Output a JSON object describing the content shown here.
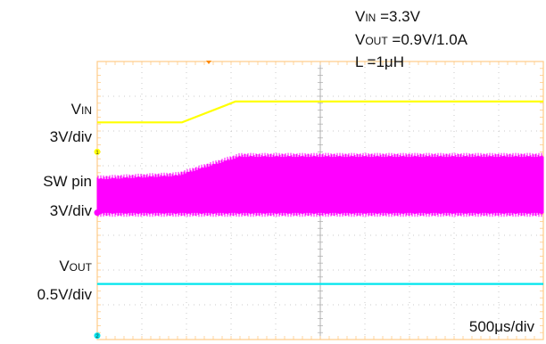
{
  "chart_data": {
    "type": "line",
    "conditions": {
      "vin": {
        "prefix": "V",
        "sub": "IN",
        "value": " =3.3V"
      },
      "vout": {
        "prefix": "V",
        "sub": "OUT",
        "value": " =0.9V/1.0A"
      },
      "inductor": {
        "text": "L =1μH"
      }
    },
    "timebase": "500μs/div",
    "x_divisions": 10,
    "y_divisions": 8,
    "time_unit": "div",
    "xlim": [
      0,
      10
    ],
    "ylim": [
      -4,
      4
    ],
    "channels": [
      {
        "name_prefix": "V",
        "name_sub": "IN",
        "scale": "3V/div",
        "color": "#ffff00",
        "marker": "1",
        "x": [
          0,
          1.9,
          3.1,
          10
        ],
        "y": [
          2.25,
          2.25,
          2.85,
          2.85
        ]
      },
      {
        "name_main": "SW  pin",
        "scale": "3V/div",
        "color": "#ff00ff",
        "marker": "",
        "x": [
          0,
          1.8,
          3.2,
          10
        ],
        "high": [
          0.6,
          0.7,
          1.25,
          1.25
        ],
        "low": [
          -0.35,
          -0.35,
          -0.35,
          -0.35
        ]
      },
      {
        "name_prefix": "V",
        "name_sub": "OUT",
        "scale": "0.5V/div",
        "color": "#00e5ee",
        "marker": "2",
        "x": [
          0,
          10
        ],
        "y": [
          -2.4,
          -2.4
        ]
      }
    ],
    "ground_marker": {
      "color": "#ff00ff",
      "level": -0.35
    },
    "trigger_marker": {
      "color": "#ff8800",
      "x": 2.5
    }
  }
}
